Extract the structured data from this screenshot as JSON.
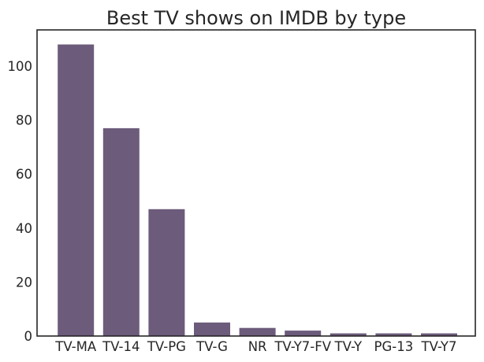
{
  "chart_data": {
    "type": "bar",
    "title": "Best TV shows on IMDB by type",
    "xlabel": "",
    "ylabel": "",
    "categories": [
      "TV-MA",
      "TV-14",
      "TV-PG",
      "TV-G",
      "NR",
      "TV-Y7-FV",
      "TV-Y",
      "PG-13",
      "TV-Y7"
    ],
    "values": [
      108,
      77,
      47,
      5,
      3,
      2,
      1,
      1,
      1
    ],
    "ylim": [
      0,
      113.4
    ],
    "yticks": [
      0,
      20,
      40,
      60,
      80,
      100
    ],
    "grid": false,
    "bar_color": "#6c5b7b"
  }
}
